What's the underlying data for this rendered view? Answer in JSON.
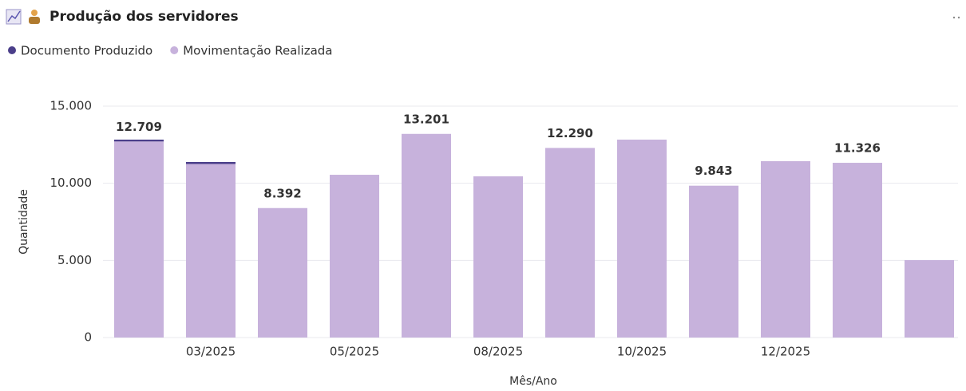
{
  "chart_data": {
    "type": "stacked_bar",
    "title": "Produção dos servidores",
    "categories": [
      null,
      "03/2025",
      null,
      "05/2025",
      null,
      "08/2025",
      null,
      "10/2025",
      null,
      "12/2025",
      null,
      null
    ],
    "series": [
      {
        "name": "Movimentação Realizada",
        "color": "#c7b2dc",
        "values": [
          12709,
          11250,
          8392,
          10550,
          13201,
          10450,
          12290,
          12830,
          9843,
          11430,
          11326,
          5020
        ],
        "value_labels": [
          "12.709",
          null,
          "8.392",
          null,
          "13.201",
          null,
          "12.290",
          null,
          "9.843",
          null,
          "11.326",
          null
        ]
      },
      {
        "name": "Documento Produzido",
        "color": "#4b3f8a",
        "values": [
          120,
          130,
          0,
          0,
          0,
          0,
          0,
          0,
          0,
          0,
          0,
          0
        ]
      }
    ],
    "legend_order": [
      1,
      0
    ],
    "xlabel": "Mês/Ano",
    "ylabel": "Quantidade",
    "ylim": [
      0,
      15000
    ],
    "yticks": [
      0,
      {
        "value": 5000,
        "label": "5.000"
      },
      {
        "value": 10000,
        "label": "10.000"
      },
      {
        "value": 15000,
        "label": "15.000"
      }
    ],
    "grid": true
  }
}
